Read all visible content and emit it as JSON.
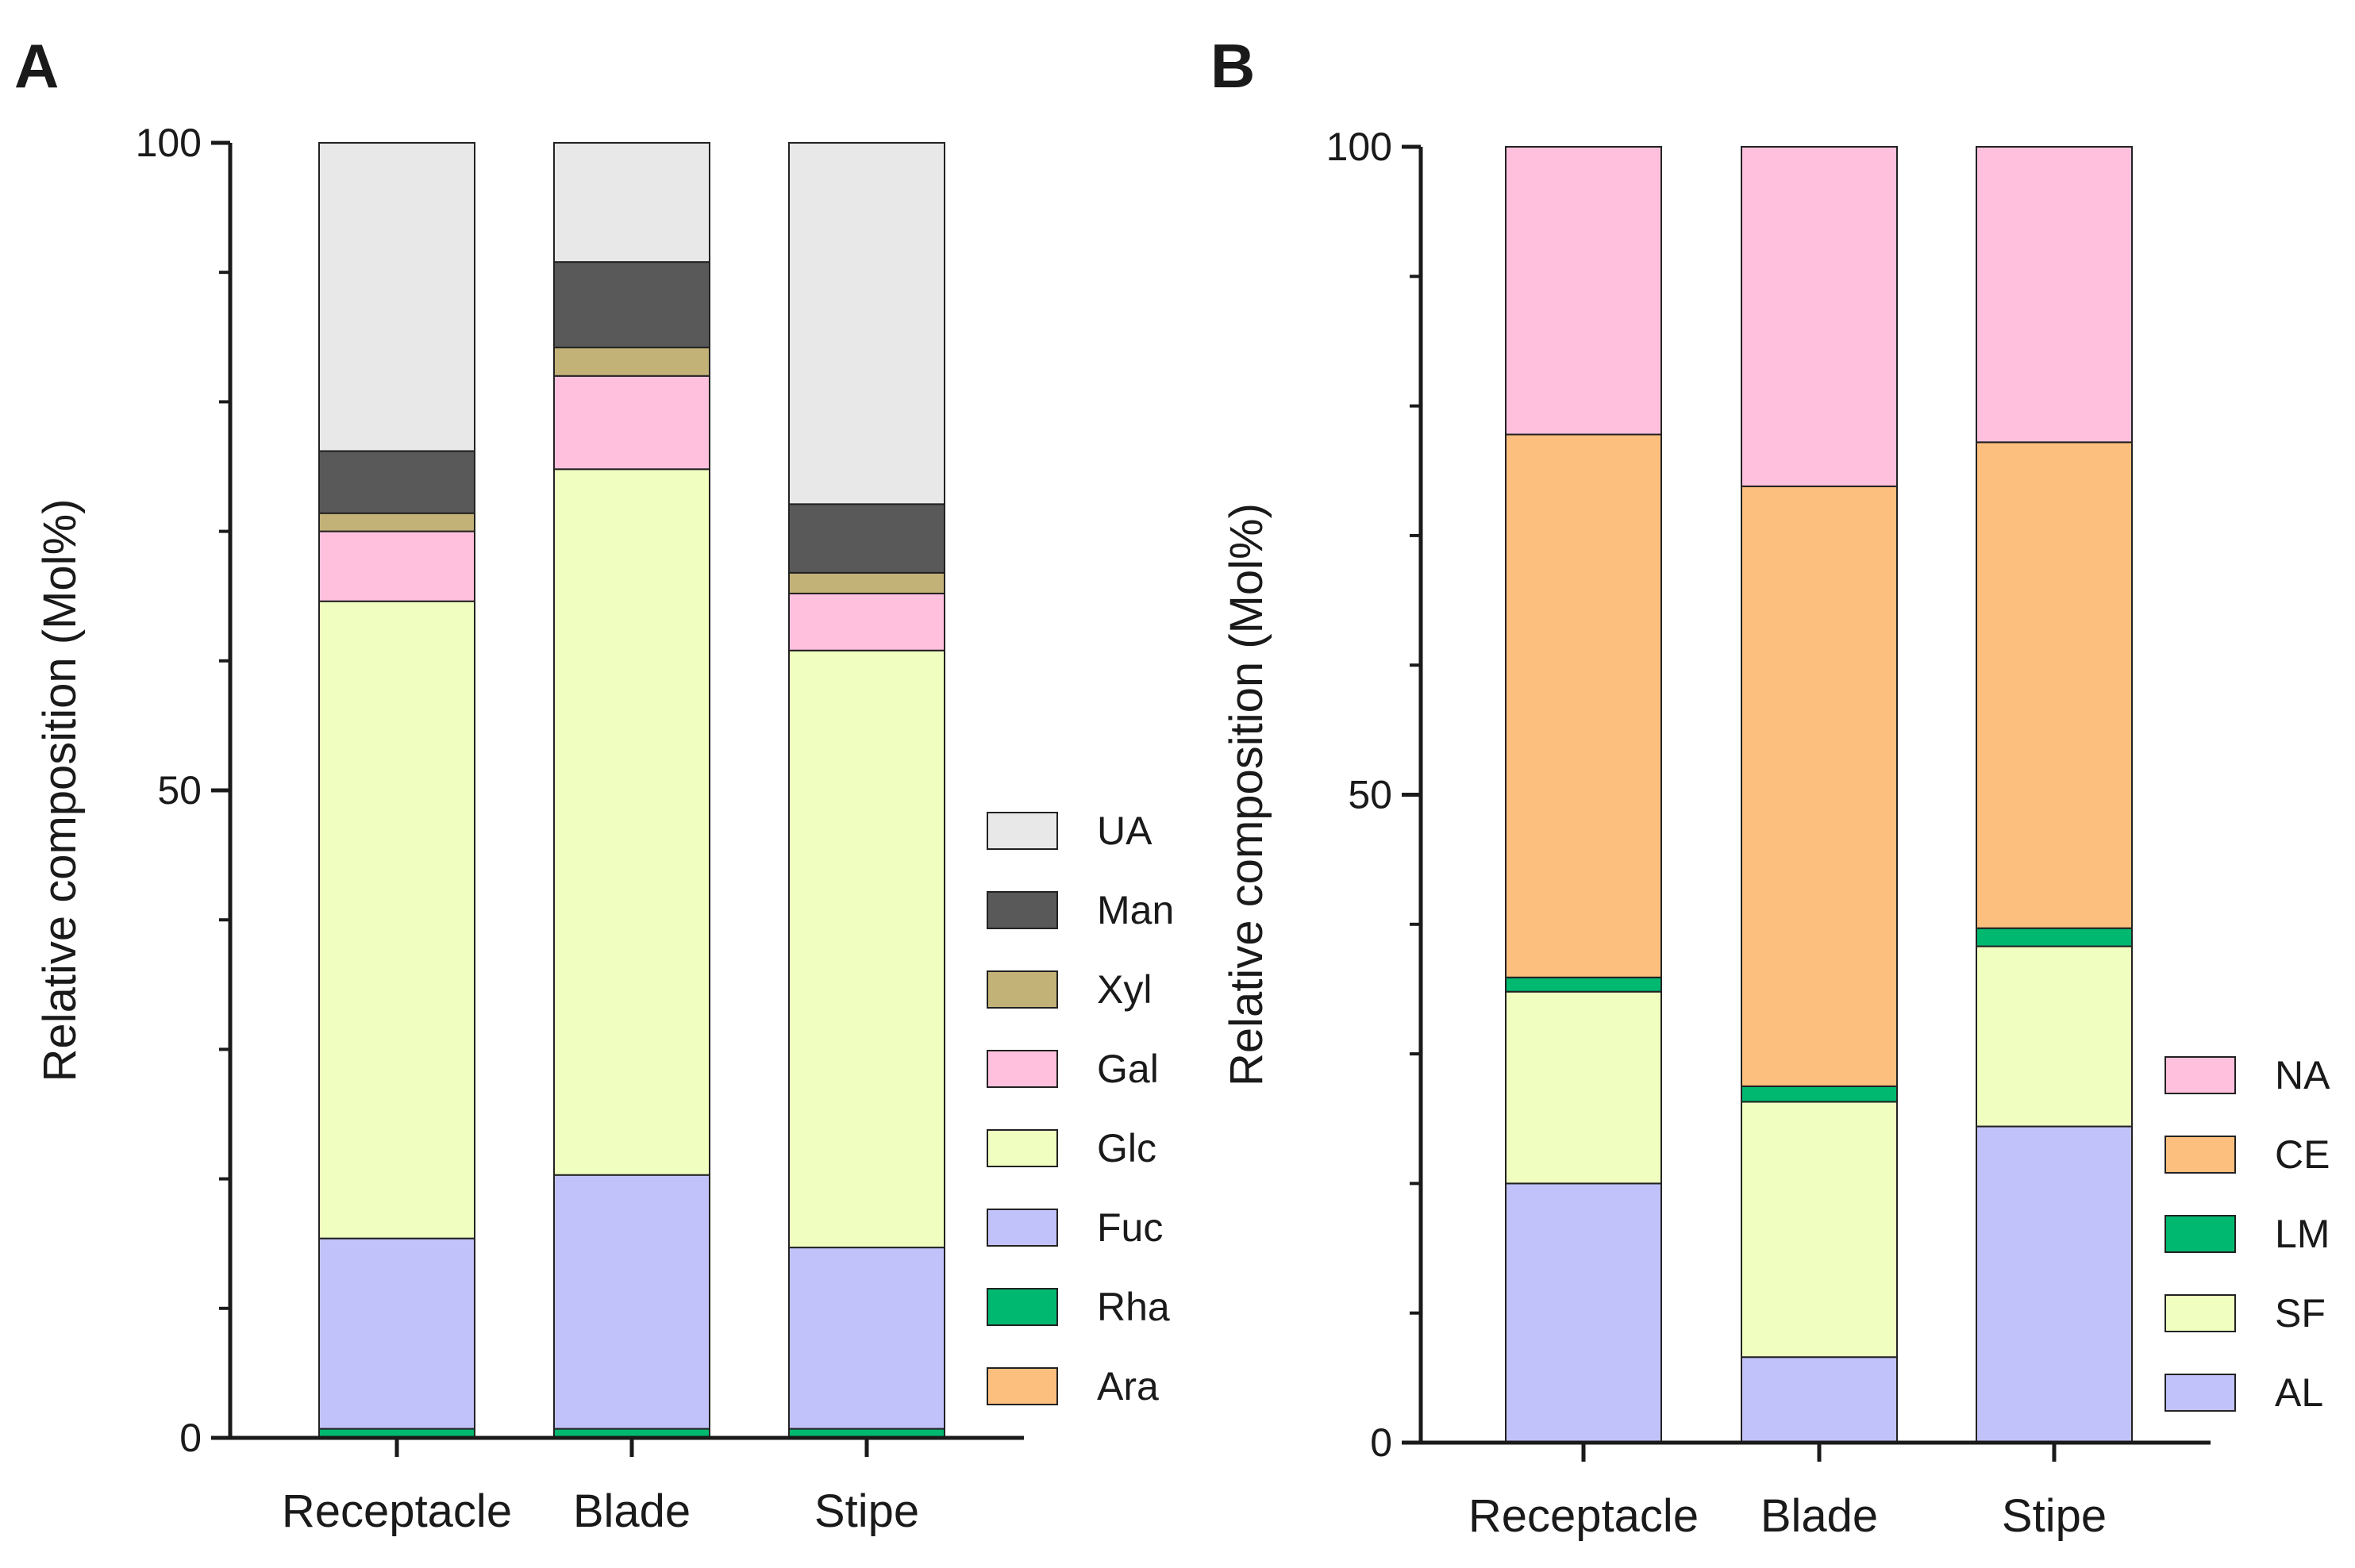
{
  "chart_data": [
    {
      "type": "bar",
      "stacked": true,
      "panel_label": "A",
      "title": "",
      "xlabel": "",
      "ylabel": "Relative composition (Mol%)",
      "ylim": [
        0,
        100
      ],
      "yticks": [
        "0",
        "50",
        "100"
      ],
      "categories": [
        "Receptacle",
        "Blade",
        "Stipe"
      ],
      "grid": false,
      "legend_position": "right",
      "series": [
        {
          "name": "Ara",
          "color": "#FDBF7E",
          "values": [
            0,
            0,
            0
          ]
        },
        {
          "name": "Rha",
          "color": "#00B870",
          "values": [
            0.7,
            0.7,
            0.7
          ]
        },
        {
          "name": "Fuc",
          "color": "#C2C2FA",
          "values": [
            14.7,
            19.6,
            14.0
          ]
        },
        {
          "name": "Glc",
          "color": "#F0FFC0",
          "values": [
            49.2,
            54.5,
            46.1
          ]
        },
        {
          "name": "Gal",
          "color": "#FFC0DD",
          "values": [
            5.4,
            7.2,
            4.4
          ]
        },
        {
          "name": "Xyl",
          "color": "#C3B278",
          "values": [
            1.4,
            2.2,
            1.6
          ]
        },
        {
          "name": "Man",
          "color": "#595959",
          "values": [
            4.8,
            6.6,
            5.3
          ]
        },
        {
          "name": "UA",
          "color": "#E8E8E8",
          "values": [
            23.8,
            9.2,
            27.9
          ]
        }
      ]
    },
    {
      "type": "bar",
      "stacked": true,
      "panel_label": "B",
      "title": "",
      "xlabel": "",
      "ylabel": "Relative composition (Mol%)",
      "ylim": [
        0,
        100
      ],
      "yticks": [
        "0",
        "50",
        "100"
      ],
      "categories": [
        "Receptacle",
        "Blade",
        "Stipe"
      ],
      "grid": false,
      "legend_position": "right",
      "series": [
        {
          "name": "AL",
          "color": "#C2C2FA",
          "values": [
            20.0,
            6.6,
            24.4
          ]
        },
        {
          "name": "SF",
          "color": "#F0FFC0",
          "values": [
            14.8,
            19.7,
            13.9
          ]
        },
        {
          "name": "LM",
          "color": "#00B870",
          "values": [
            1.1,
            1.2,
            1.4
          ]
        },
        {
          "name": "CE",
          "color": "#FDBF7E",
          "values": [
            41.9,
            46.3,
            37.5
          ]
        },
        {
          "name": "NA",
          "color": "#FFC0DD",
          "values": [
            22.2,
            26.2,
            22.8
          ]
        }
      ]
    }
  ]
}
